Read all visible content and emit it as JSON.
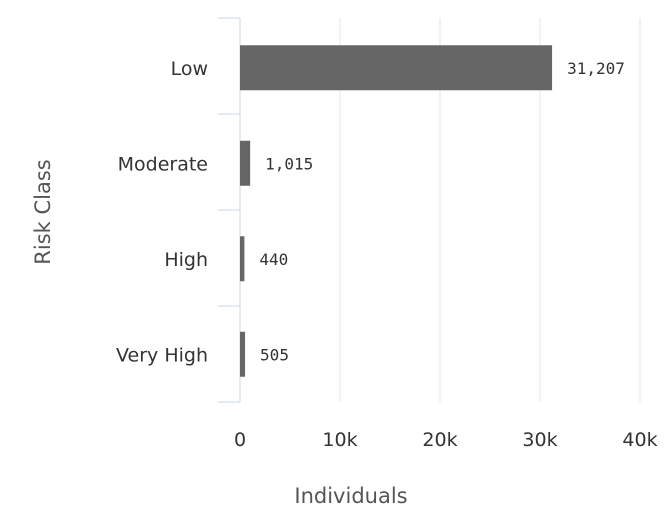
{
  "chart_data": {
    "type": "bar",
    "orientation": "horizontal",
    "categories": [
      "Low",
      "Moderate",
      "High",
      "Very High"
    ],
    "values": [
      31207,
      1015,
      440,
      505
    ],
    "data_labels": [
      "31,207",
      "1,015",
      "440",
      "505"
    ],
    "xlabel": "Individuals",
    "ylabel": "Risk Class",
    "xlim": [
      0,
      40000
    ],
    "x_ticks": [
      0,
      10000,
      20000,
      30000,
      40000
    ],
    "x_tick_labels": [
      "0",
      "10k",
      "20k",
      "30k",
      "40k"
    ],
    "grid": "vertical",
    "bar_color": "#666666",
    "grid_color": "#e6e6e6",
    "axis_color": "#ccd6eb"
  }
}
